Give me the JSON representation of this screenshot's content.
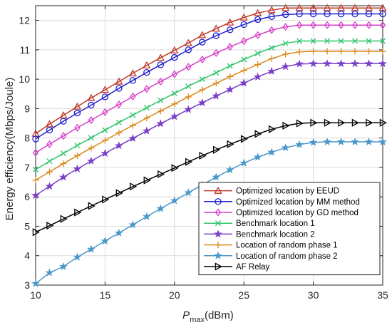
{
  "chart_data": {
    "type": "line",
    "xlabel_main": "P",
    "xlabel_sub": "max",
    "xlabel_unit": "(dBm)",
    "ylabel": "Energy efficiency(Mbps/Joule)",
    "xlim": [
      10,
      35
    ],
    "ylim": [
      3,
      12.5
    ],
    "x_ticks": [
      10,
      15,
      20,
      25,
      30,
      35
    ],
    "y_ticks": [
      3,
      4,
      5,
      6,
      7,
      8,
      9,
      10,
      11,
      12
    ],
    "grid": true,
    "legend_position": "bottom-right",
    "x": [
      10,
      11,
      12,
      13,
      14,
      15,
      16,
      17,
      18,
      19,
      20,
      21,
      22,
      23,
      24,
      25,
      26,
      27,
      28,
      29,
      30,
      31,
      32,
      33,
      34,
      35
    ],
    "series": [
      {
        "name": "Optimized location by EEUD",
        "color": "#c0392b",
        "marker": "triangle-up",
        "values": [
          8.15,
          8.47,
          8.77,
          9.07,
          9.36,
          9.64,
          9.92,
          10.2,
          10.47,
          10.73,
          10.98,
          11.23,
          11.5,
          11.72,
          11.93,
          12.1,
          12.25,
          12.35,
          12.42,
          12.42,
          12.42,
          12.42,
          12.42,
          12.42,
          12.42,
          12.42
        ]
      },
      {
        "name": "Optimized location by MM method",
        "color": "#1f1fd0",
        "marker": "circle",
        "values": [
          7.97,
          8.27,
          8.57,
          8.85,
          9.12,
          9.4,
          9.69,
          9.96,
          10.23,
          10.49,
          10.74,
          11.0,
          11.26,
          11.48,
          11.68,
          11.86,
          12.03,
          12.13,
          12.2,
          12.22,
          12.22,
          12.22,
          12.22,
          12.22,
          12.22,
          12.22
        ]
      },
      {
        "name": "Optimized location by GD method",
        "color": "#d640c8",
        "marker": "diamond",
        "values": [
          7.5,
          7.79,
          8.07,
          8.35,
          8.61,
          8.88,
          9.14,
          9.41,
          9.67,
          9.92,
          10.17,
          10.42,
          10.67,
          10.89,
          11.1,
          11.3,
          11.5,
          11.67,
          11.78,
          11.84,
          11.84,
          11.84,
          11.84,
          11.84,
          11.84,
          11.84
        ]
      },
      {
        "name": "Benchmark location 1",
        "color": "#2ec46a",
        "marker": "x",
        "values": [
          6.93,
          7.21,
          7.48,
          7.75,
          8.01,
          8.27,
          8.53,
          8.78,
          9.03,
          9.28,
          9.52,
          9.76,
          10.0,
          10.22,
          10.45,
          10.67,
          10.88,
          11.07,
          11.22,
          11.3,
          11.3,
          11.3,
          11.3,
          11.3,
          11.3,
          11.3
        ]
      },
      {
        "name": "Benchmark location 2",
        "color": "#7a3fc8",
        "marker": "star",
        "values": [
          6.05,
          6.36,
          6.67,
          6.95,
          7.22,
          7.48,
          7.74,
          7.99,
          8.24,
          8.49,
          8.73,
          8.97,
          9.2,
          9.43,
          9.65,
          9.87,
          10.08,
          10.27,
          10.43,
          10.52,
          10.53,
          10.53,
          10.53,
          10.53,
          10.53,
          10.53
        ]
      },
      {
        "name": "Location of random phase 1",
        "color": "#d98a1c",
        "marker": "plus",
        "values": [
          6.57,
          6.85,
          7.13,
          7.4,
          7.66,
          7.92,
          8.18,
          8.43,
          8.68,
          8.92,
          9.16,
          9.4,
          9.64,
          9.86,
          10.09,
          10.3,
          10.5,
          10.7,
          10.85,
          10.93,
          10.95,
          10.95,
          10.95,
          10.95,
          10.95,
          10.95
        ]
      },
      {
        "name": "Location of random phase 2",
        "color": "#4a98c9",
        "marker": "star",
        "values": [
          3.05,
          3.42,
          3.63,
          3.95,
          4.22,
          4.5,
          4.77,
          5.05,
          5.33,
          5.6,
          5.87,
          6.14,
          6.41,
          6.67,
          6.92,
          7.15,
          7.35,
          7.52,
          7.67,
          7.78,
          7.85,
          7.87,
          7.87,
          7.87,
          7.87,
          7.87
        ]
      },
      {
        "name": "AF Relay",
        "color": "#000000",
        "marker": "triangle-right",
        "values": [
          4.8,
          5.02,
          5.25,
          5.47,
          5.69,
          5.91,
          6.13,
          6.35,
          6.56,
          6.77,
          6.98,
          7.19,
          7.4,
          7.6,
          7.79,
          7.97,
          8.14,
          8.3,
          8.42,
          8.5,
          8.52,
          8.52,
          8.52,
          8.52,
          8.52,
          8.52
        ]
      }
    ]
  }
}
